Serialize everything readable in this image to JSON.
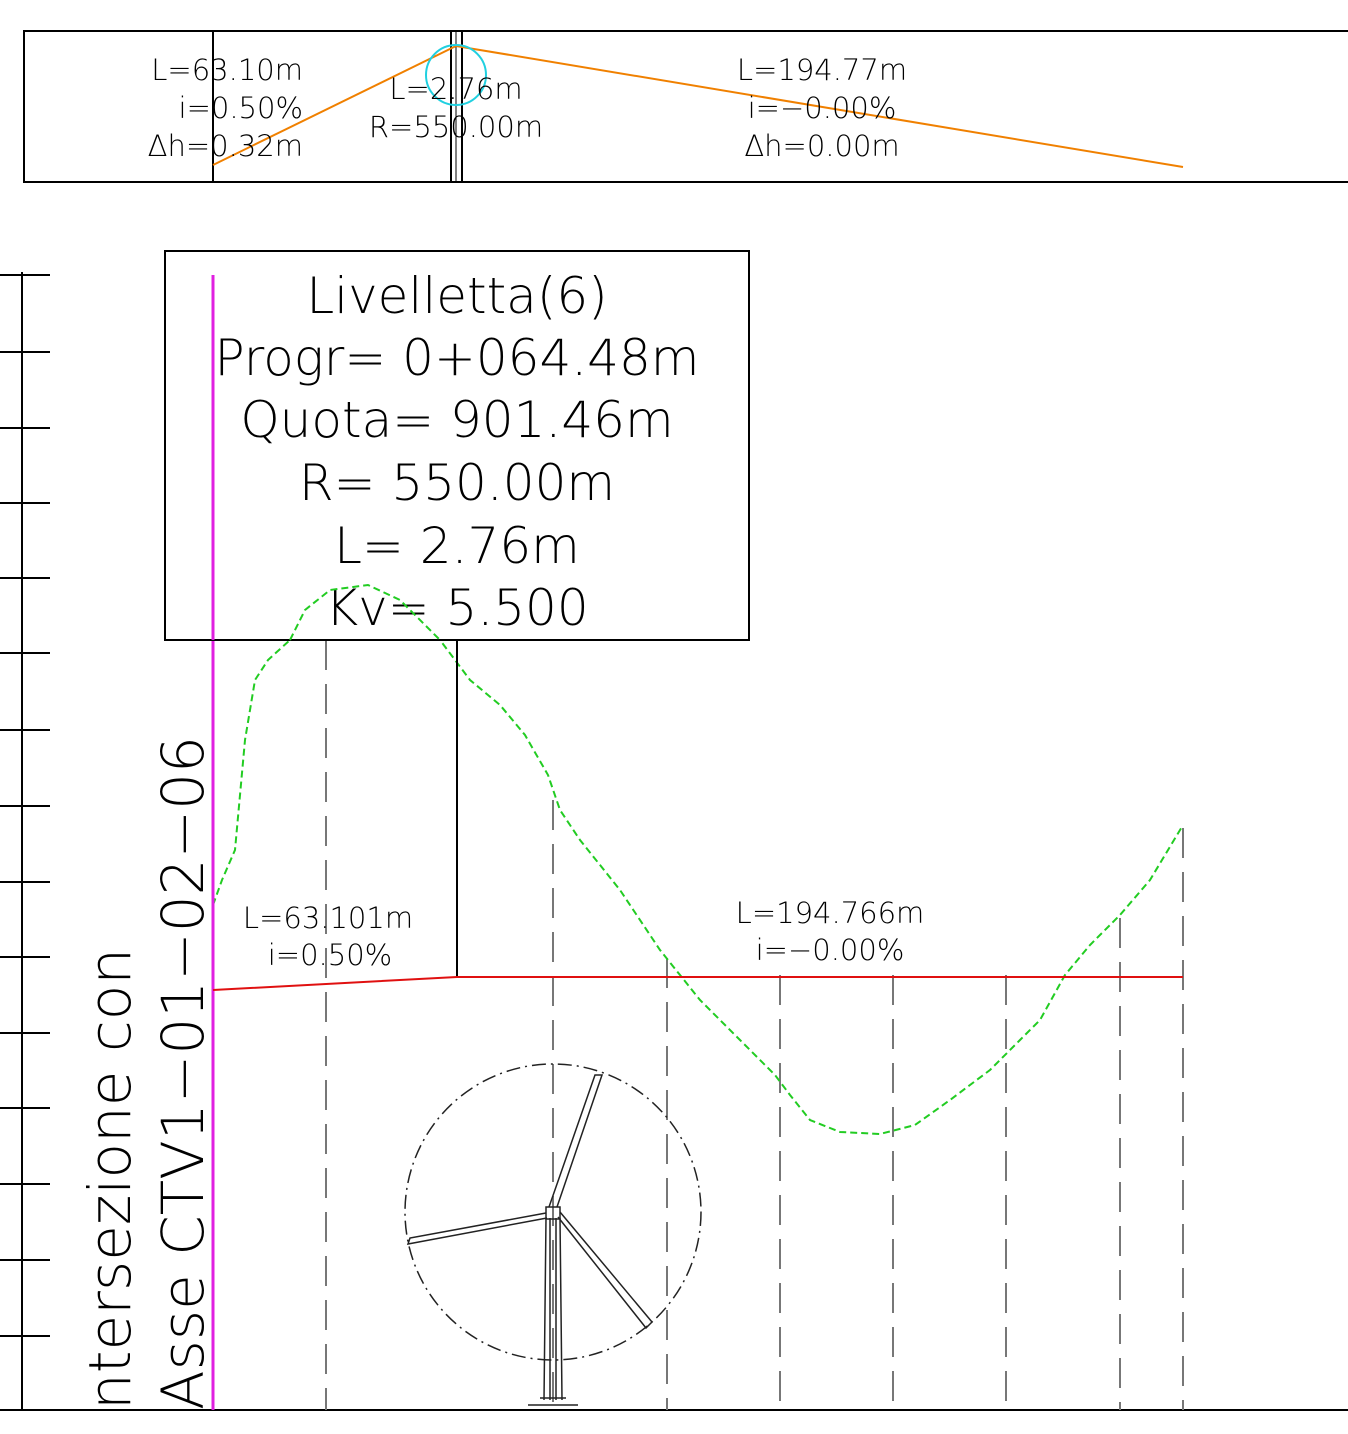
{
  "header_strip": {
    "segment_1": {
      "length": "L=63.10m",
      "slope": "i=0.50%",
      "delta_h": "Δh=0.32m"
    },
    "curve": {
      "length": "L=2.76m",
      "radius": "R=550.00m"
    },
    "segment_2": {
      "length": "L=194.77m",
      "slope": "i=−0.00%",
      "delta_h": "Δh=0.00m"
    }
  },
  "info_box": {
    "title": "Livelletta(6)",
    "progr": "Progr= 0+064.48m",
    "quota": "Quota= 901.46m",
    "radius": "R= 550.00m",
    "length": "L= 2.76m",
    "kv": "Kv= 5.500"
  },
  "profile_labels": {
    "segment_1": {
      "length": "L=63.101m",
      "slope": "i=0.50%"
    },
    "segment_2": {
      "length": "L=194.766m",
      "slope": "i=−0.00%"
    }
  },
  "intersection_note": {
    "line_1": "ntersezione con",
    "line_2": "Asse CTV1−01−02−06"
  }
}
